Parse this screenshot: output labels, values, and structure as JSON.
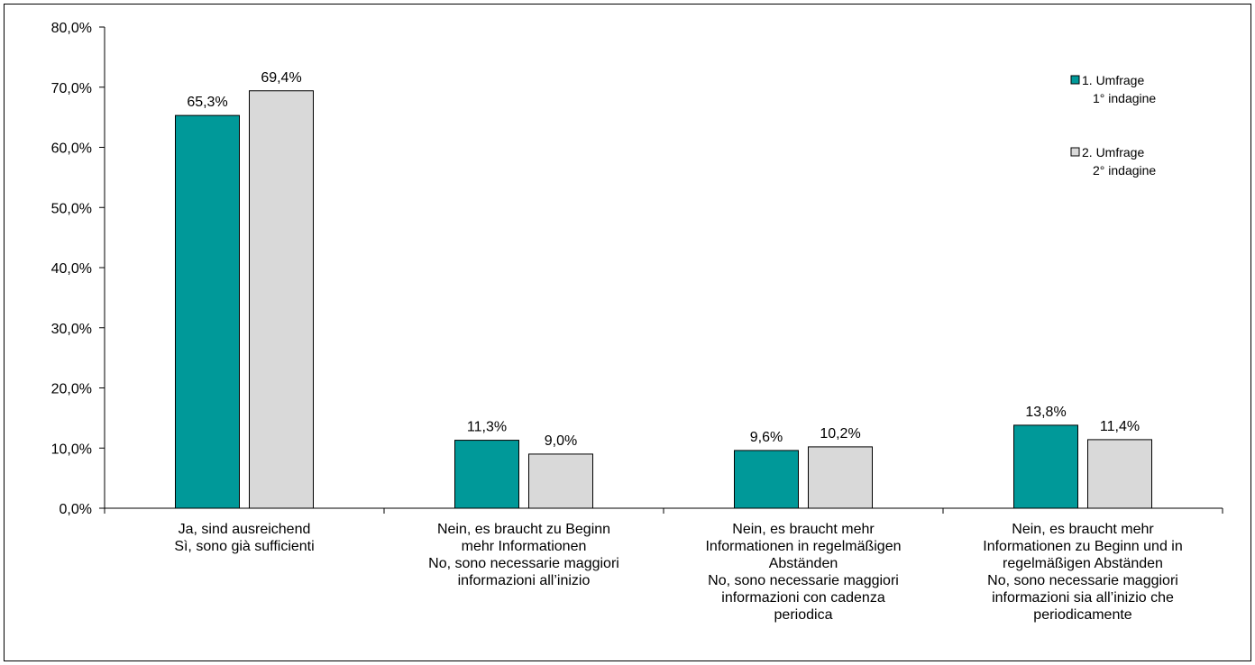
{
  "chart_data": {
    "type": "bar",
    "title": "",
    "xlabel": "",
    "ylabel": "",
    "ylim": [
      0,
      80
    ],
    "yticks": [
      "0,0%",
      "10,0%",
      "20,0%",
      "30,0%",
      "40,0%",
      "50,0%",
      "60,0%",
      "70,0%",
      "80,0%"
    ],
    "grid": false,
    "legend_position": "top-right",
    "categories": [
      [
        "Ja, sind ausreichend",
        "Sì, sono già sufficienti"
      ],
      [
        "Nein, es braucht zu Beginn",
        "mehr Informationen",
        "No, sono necessarie maggiori",
        "informazioni all’inizio"
      ],
      [
        "Nein, es braucht mehr",
        "Informationen in regelmäßigen",
        "Abständen",
        "No, sono necessarie maggiori",
        "informazioni con cadenza",
        "periodica"
      ],
      [
        "Nein, es braucht mehr",
        "Informationen zu Beginn und in",
        "regelmäßigen Abständen",
        "No, sono necessarie maggiori",
        "informazioni sia all’inizio che",
        "periodicamente"
      ]
    ],
    "series": [
      {
        "name": [
          "1. Umfrage",
          "1° indagine"
        ],
        "color": "#009999",
        "values": [
          65.3,
          11.3,
          9.6,
          13.8
        ],
        "labels": [
          "65,3%",
          "11,3%",
          "9,6%",
          "13,8%"
        ]
      },
      {
        "name": [
          "2. Umfrage",
          "2° indagine"
        ],
        "color": "#d9d9d9",
        "values": [
          69.4,
          9.0,
          10.2,
          11.4
        ],
        "labels": [
          "69,4%",
          "9,0%",
          "10,2%",
          "11,4%"
        ]
      }
    ]
  }
}
